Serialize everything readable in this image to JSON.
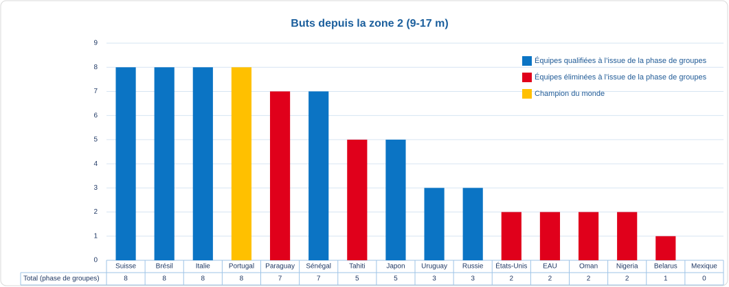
{
  "chart_data": {
    "type": "bar",
    "title": "Buts depuis la zone 2 (9-17 m)",
    "categories": [
      "Suisse",
      "Brésil",
      "Italie",
      "Portugal",
      "Paraguay",
      "Sénégal",
      "Tahiti",
      "Japon",
      "Uruguay",
      "Russie",
      "États-Unis",
      "EAU",
      "Oman",
      "Nigeria",
      "Belarus",
      "Mexique"
    ],
    "values": [
      8,
      8,
      8,
      8,
      7,
      7,
      5,
      5,
      3,
      3,
      2,
      2,
      2,
      2,
      1,
      0
    ],
    "colors": [
      "#0b74c4",
      "#0b74c4",
      "#0b74c4",
      "#ffc000",
      "#e0001b",
      "#0b74c4",
      "#e0001b",
      "#0b74c4",
      "#0b74c4",
      "#0b74c4",
      "#e0001b",
      "#e0001b",
      "#e0001b",
      "#e0001b",
      "#e0001b",
      "#e0001b"
    ],
    "legend": [
      {
        "name": "Équipes qualifiées à l’issue de la phase de groupes",
        "color": "#0b74c4"
      },
      {
        "name": "Équipes éliminées à l’issue de la phase de groupes",
        "color": "#e0001b"
      },
      {
        "name": "Champion du monde",
        "color": "#ffc000"
      }
    ],
    "table_label": "Total (phase de groupes)",
    "ylim": [
      0,
      9
    ],
    "yticks": [
      0,
      1,
      2,
      3,
      4,
      5,
      6,
      7,
      8,
      9
    ],
    "grid": true
  }
}
